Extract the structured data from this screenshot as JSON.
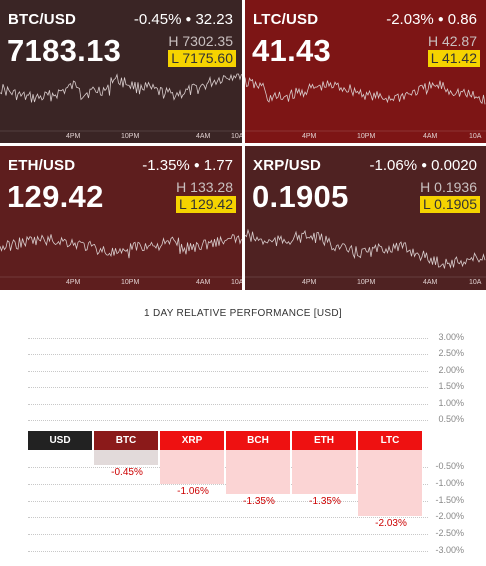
{
  "tiles": [
    {
      "pair": "BTC/USD",
      "change_pct": "-0.45%",
      "change_abs": "32.23",
      "price": "7183.13",
      "high": "H 7302.35",
      "low": "L 7175.60",
      "bg": "#3a2525",
      "time_labels": [
        "4PM",
        "10PM",
        "4AM",
        "10A"
      ]
    },
    {
      "pair": "LTC/USD",
      "change_pct": "-2.03%",
      "change_abs": "0.86",
      "price": "41.43",
      "high": "H 42.87",
      "low": "L 41.42",
      "bg": "#7d1515",
      "time_labels": [
        "4PM",
        "10PM",
        "4AM",
        "10A"
      ]
    },
    {
      "pair": "ETH/USD",
      "change_pct": "-1.35%",
      "change_abs": "1.77",
      "price": "129.42",
      "high": "H 133.28",
      "low": "L 129.42",
      "bg": "#5e1e1e",
      "time_labels": [
        "4PM",
        "10PM",
        "4AM",
        "10A"
      ]
    },
    {
      "pair": "XRP/USD",
      "change_pct": "-1.06%",
      "change_abs": "0.0020",
      "price": "0.1905",
      "high": "H 0.1936",
      "low": "L 0.1905",
      "bg": "#4f2222",
      "time_labels": [
        "4PM",
        "10PM",
        "4AM",
        "10A"
      ]
    }
  ],
  "chart_data": {
    "type": "bar",
    "title": "1 DAY RELATIVE PERFORMANCE  [USD]",
    "base_label": "USD",
    "categories": [
      "BTC",
      "XRP",
      "BCH",
      "ETH",
      "LTC"
    ],
    "values": [
      -0.45,
      -1.06,
      -1.35,
      -1.35,
      -2.03
    ],
    "value_labels": [
      "-0.45%",
      "-1.06%",
      "-1.35%",
      "-1.35%",
      "-2.03%"
    ],
    "positive_ticks": [
      "3.00%",
      "2.50%",
      "2.00%",
      "1.50%",
      "1.00%",
      "0.50%"
    ],
    "negative_ticks": [
      "-0.50%",
      "-1.00%",
      "-1.50%",
      "-2.00%",
      "-2.50%",
      "-3.00%"
    ],
    "ylim": [
      -3.0,
      3.0
    ],
    "colors": {
      "usd": "#222222",
      "btc": "#8b1a1a",
      "others": "#ee1111",
      "bar_fill": "#fbd4d4",
      "btc_fill": "#e2dada"
    }
  }
}
